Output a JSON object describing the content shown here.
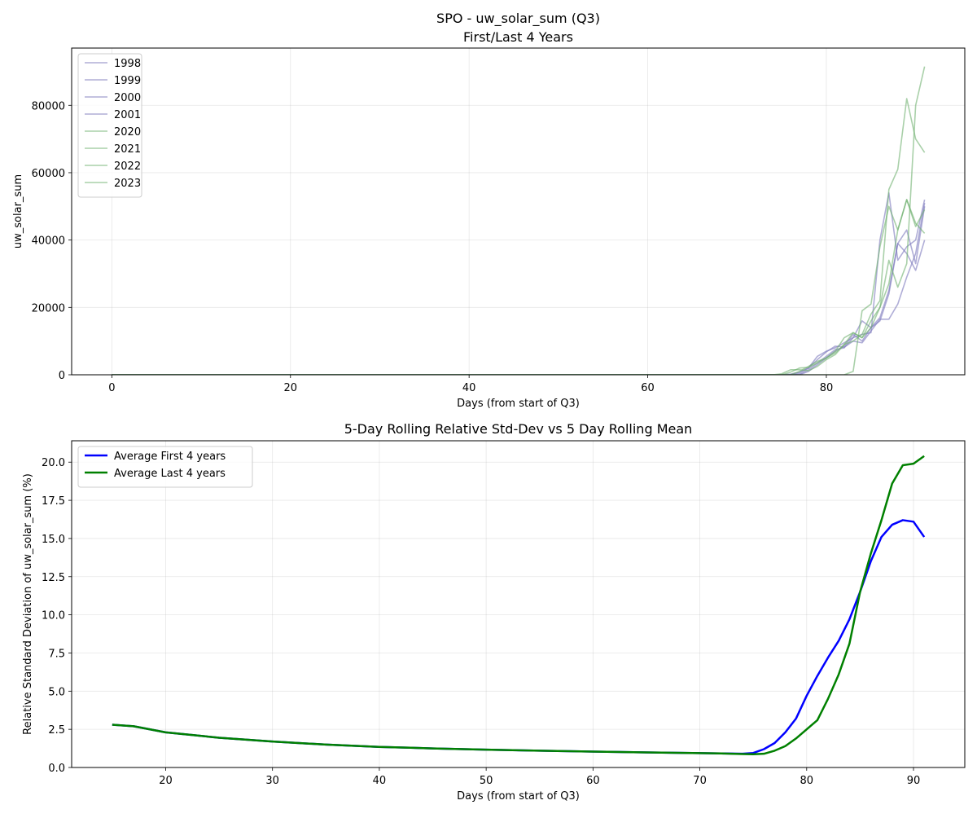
{
  "chart_data": [
    {
      "type": "line",
      "title": "SPO - uw_solar_sum (Q3)\nFirst/Last 4 Years",
      "title_lines": [
        "SPO - uw_solar_sum (Q3)",
        "First/Last 4 Years"
      ],
      "xlabel": "Days (from start of Q3)",
      "ylabel": "uw_solar_sum",
      "xlim": [
        -4.5,
        95.5
      ],
      "ylim": [
        0,
        97000
      ],
      "xticks": [
        0,
        20,
        40,
        60,
        80
      ],
      "yticks": [
        0,
        20000,
        40000,
        60000,
        80000
      ],
      "grid": true,
      "legend_position": "upper-left",
      "colors": {
        "first": "#7b78bd",
        "last": "#6fb06f"
      },
      "series": [
        {
          "name": "1998",
          "group": "first",
          "x": [
            0,
            75,
            76,
            77,
            78,
            79,
            80,
            81,
            82,
            83,
            84,
            85,
            86,
            87,
            88,
            89,
            90,
            91
          ],
          "y": [
            0,
            0,
            200,
            800,
            2000,
            4500,
            6800,
            8500,
            8200,
            10000,
            9500,
            13000,
            16500,
            16500,
            21000,
            29000,
            36000,
            51000
          ]
        },
        {
          "name": "1999",
          "group": "first",
          "x": [
            0,
            76,
            77,
            78,
            79,
            80,
            81,
            82,
            83,
            84,
            85,
            86,
            87,
            88,
            89,
            90,
            91
          ],
          "y": [
            0,
            0,
            100,
            1500,
            3500,
            5500,
            7500,
            8000,
            11000,
            16000,
            14000,
            17000,
            25000,
            39000,
            36000,
            31000,
            40000
          ]
        },
        {
          "name": "2000",
          "group": "first",
          "x": [
            0,
            76,
            77,
            78,
            79,
            80,
            81,
            82,
            83,
            84,
            85,
            86,
            87,
            88,
            89,
            90,
            91
          ],
          "y": [
            0,
            0,
            500,
            2000,
            5500,
            7000,
            8000,
            9500,
            11000,
            12000,
            12500,
            40000,
            54000,
            34000,
            38000,
            40000,
            52000
          ]
        },
        {
          "name": "2001",
          "group": "first",
          "x": [
            0,
            77,
            78,
            79,
            80,
            81,
            82,
            83,
            84,
            85,
            86,
            87,
            88,
            89,
            90,
            91
          ],
          "y": [
            0,
            0,
            1000,
            3000,
            5000,
            7000,
            8500,
            12000,
            10000,
            14000,
            16000,
            24000,
            39000,
            43000,
            33000,
            50000
          ]
        },
        {
          "name": "2020",
          "group": "last",
          "x": [
            0,
            74,
            75,
            76,
            77,
            78,
            79,
            80,
            81,
            82,
            83,
            84,
            85,
            86,
            87,
            88,
            89,
            90,
            91
          ],
          "y": [
            0,
            0,
            300,
            1500,
            1500,
            1200,
            2500,
            4500,
            6000,
            9000,
            12500,
            11000,
            14000,
            20000,
            27000,
            43000,
            52000,
            45000,
            42000
          ]
        },
        {
          "name": "2021",
          "group": "last",
          "x": [
            0,
            81,
            82,
            83,
            84,
            85,
            86,
            87,
            88,
            89,
            90,
            91
          ],
          "y": [
            0,
            0,
            0,
            1000,
            19000,
            21000,
            38000,
            50000,
            43000,
            52000,
            44000,
            49000
          ]
        },
        {
          "name": "2022",
          "group": "last",
          "x": [
            0,
            75,
            76,
            77,
            78,
            79,
            80,
            81,
            82,
            83,
            84,
            85,
            86,
            87,
            88,
            89,
            90,
            91
          ],
          "y": [
            0,
            0,
            800,
            2000,
            2200,
            3500,
            5000,
            7000,
            11000,
            12500,
            11000,
            16000,
            20000,
            34000,
            26000,
            33000,
            80000,
            91500
          ]
        },
        {
          "name": "2023",
          "group": "last",
          "x": [
            0,
            76,
            77,
            78,
            79,
            80,
            81,
            82,
            83,
            84,
            85,
            86,
            87,
            88,
            89,
            90,
            91
          ],
          "y": [
            0,
            0,
            1000,
            2500,
            4000,
            5000,
            6500,
            9000,
            10000,
            12000,
            18000,
            22000,
            55000,
            61000,
            82000,
            70000,
            66000
          ]
        }
      ]
    },
    {
      "type": "line",
      "title": "5-Day Rolling Relative Std-Dev vs 5 Day Rolling Mean",
      "xlabel": "Days (from start of Q3)",
      "ylabel": "Relative Standard Deviation of uw_solar_sum (%)",
      "xlim": [
        11.2,
        94.8
      ],
      "ylim": [
        0,
        21.4
      ],
      "xticks": [
        20,
        30,
        40,
        50,
        60,
        70,
        80,
        90
      ],
      "yticks": [
        0.0,
        2.5,
        5.0,
        7.5,
        10.0,
        12.5,
        15.0,
        17.5,
        20.0
      ],
      "ytick_labels": [
        "0.0",
        "2.5",
        "5.0",
        "7.5",
        "10.0",
        "12.5",
        "15.0",
        "17.5",
        "20.0"
      ],
      "grid": true,
      "legend_position": "upper-left",
      "series": [
        {
          "name": "Average First 4 years",
          "color": "#0000ff",
          "x": [
            15,
            17,
            20,
            25,
            30,
            35,
            40,
            45,
            50,
            55,
            60,
            65,
            70,
            72,
            74,
            75,
            76,
            77,
            78,
            79,
            80,
            81,
            82,
            83,
            84,
            85,
            86,
            87,
            88,
            89,
            90,
            91
          ],
          "y": [
            2.8,
            2.7,
            2.3,
            1.95,
            1.7,
            1.5,
            1.35,
            1.25,
            1.17,
            1.1,
            1.04,
            0.99,
            0.94,
            0.92,
            0.9,
            0.95,
            1.2,
            1.6,
            2.3,
            3.2,
            4.7,
            6.0,
            7.2,
            8.3,
            9.7,
            11.5,
            13.5,
            15.1,
            15.9,
            16.2,
            16.1,
            15.1
          ]
        },
        {
          "name": "Average Last 4 years",
          "color": "#008000",
          "x": [
            15,
            17,
            20,
            25,
            30,
            35,
            40,
            45,
            50,
            55,
            60,
            65,
            70,
            72,
            74,
            75,
            76,
            77,
            78,
            79,
            80,
            81,
            82,
            83,
            84,
            85,
            86,
            87,
            88,
            89,
            90,
            91
          ],
          "y": [
            2.8,
            2.7,
            2.3,
            1.95,
            1.7,
            1.5,
            1.35,
            1.25,
            1.17,
            1.1,
            1.04,
            0.99,
            0.94,
            0.92,
            0.88,
            0.87,
            0.9,
            1.1,
            1.4,
            1.9,
            2.5,
            3.1,
            4.5,
            6.1,
            8.1,
            11.5,
            14.0,
            16.2,
            18.6,
            19.8,
            19.9,
            20.4
          ]
        }
      ]
    }
  ]
}
